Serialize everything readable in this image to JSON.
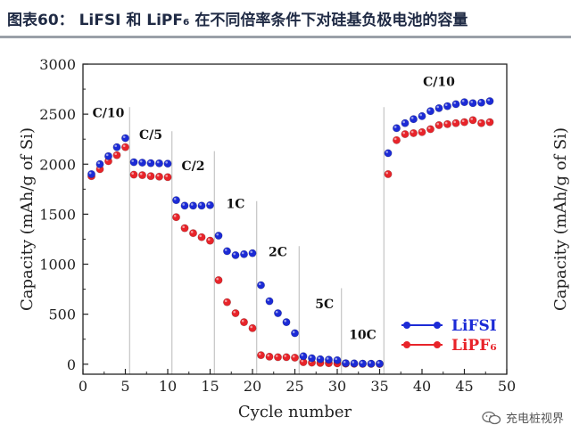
{
  "figure_title": "图表60： LiFSI 和 LiPF₆ 在不同倍率条件下对硅基负极电池的容量",
  "watermark": "充电桩视界",
  "colors": {
    "lifsi": "#1c2bd6",
    "lipf6": "#e8242a",
    "divider": "#b8b8b8",
    "axis": "#222222",
    "title": "#1f2a44"
  },
  "chart_data": {
    "type": "scatter",
    "xlabel": "Cycle number",
    "ylabel": "Capacity (mAh/g of Si)",
    "right_ylabel_partial": "Capacity (mAh/g of Si)",
    "xlim": [
      0,
      50
    ],
    "ylim": [
      -100,
      3000
    ],
    "xticks": [
      0,
      5,
      10,
      15,
      20,
      25,
      30,
      35,
      40,
      45,
      50
    ],
    "yticks": [
      0,
      500,
      1000,
      1500,
      2000,
      2500,
      3000
    ],
    "grid": false,
    "legend_position": "lower-right",
    "series": [
      {
        "name": "LiFSI",
        "color": "#1c2bd6",
        "x": [
          1,
          2,
          3,
          4,
          5,
          6,
          7,
          8,
          9,
          10,
          11,
          12,
          13,
          14,
          15,
          16,
          17,
          18,
          19,
          20,
          21,
          22,
          23,
          24,
          25,
          26,
          27,
          28,
          29,
          30,
          31,
          32,
          33,
          34,
          35,
          36,
          37,
          38,
          39,
          40,
          41,
          42,
          43,
          44,
          45,
          46,
          47,
          48
        ],
        "y": [
          1900,
          2000,
          2080,
          2170,
          2260,
          2020,
          2015,
          2010,
          2008,
          2005,
          1640,
          1585,
          1585,
          1585,
          1590,
          1285,
          1130,
          1090,
          1100,
          1110,
          790,
          630,
          510,
          420,
          310,
          80,
          60,
          50,
          45,
          40,
          10,
          8,
          6,
          5,
          5,
          2110,
          2360,
          2410,
          2450,
          2480,
          2530,
          2560,
          2580,
          2600,
          2620,
          2610,
          2615,
          2630
        ]
      },
      {
        "name": "LiPF₆",
        "color": "#e8242a",
        "x": [
          1,
          2,
          3,
          4,
          5,
          6,
          7,
          8,
          9,
          10,
          11,
          12,
          13,
          14,
          15,
          16,
          17,
          18,
          19,
          20,
          21,
          22,
          23,
          24,
          25,
          26,
          27,
          28,
          29,
          30,
          31,
          32,
          33,
          34,
          35,
          36,
          37,
          38,
          39,
          40,
          41,
          42,
          43,
          44,
          45,
          46,
          47,
          48
        ],
        "y": [
          1880,
          1950,
          2030,
          2090,
          2170,
          1895,
          1890,
          1880,
          1875,
          1870,
          1470,
          1360,
          1310,
          1270,
          1235,
          840,
          620,
          510,
          420,
          360,
          90,
          75,
          70,
          70,
          65,
          20,
          15,
          12,
          10,
          8,
          5,
          4,
          3,
          3,
          2,
          1900,
          2240,
          2300,
          2310,
          2320,
          2350,
          2390,
          2400,
          2410,
          2420,
          2440,
          2410,
          2420
        ]
      }
    ],
    "rate_sections": [
      {
        "label": "C/10",
        "x_center": 3,
        "y": 2470
      },
      {
        "label": "C/5",
        "x_center": 8,
        "y": 2250
      },
      {
        "label": "C/2",
        "x_center": 13,
        "y": 1940
      },
      {
        "label": "1C",
        "x_center": 18,
        "y": 1560
      },
      {
        "label": "2C",
        "x_center": 23,
        "y": 1080
      },
      {
        "label": "5C",
        "x_center": 28.5,
        "y": 560
      },
      {
        "label": "10C",
        "x_center": 33,
        "y": 250
      },
      {
        "label": "C/10",
        "x_center": 42,
        "y": 2780
      }
    ],
    "section_dividers": [
      {
        "x": 5.5,
        "y_top": 2570
      },
      {
        "x": 10.5,
        "y_top": 2330
      },
      {
        "x": 15.5,
        "y_top": 2130
      },
      {
        "x": 20.5,
        "y_top": 1630
      },
      {
        "x": 25.5,
        "y_top": 1180
      },
      {
        "x": 30.5,
        "y_top": 760
      },
      {
        "x": 35.5,
        "y_top": 2570
      }
    ]
  }
}
